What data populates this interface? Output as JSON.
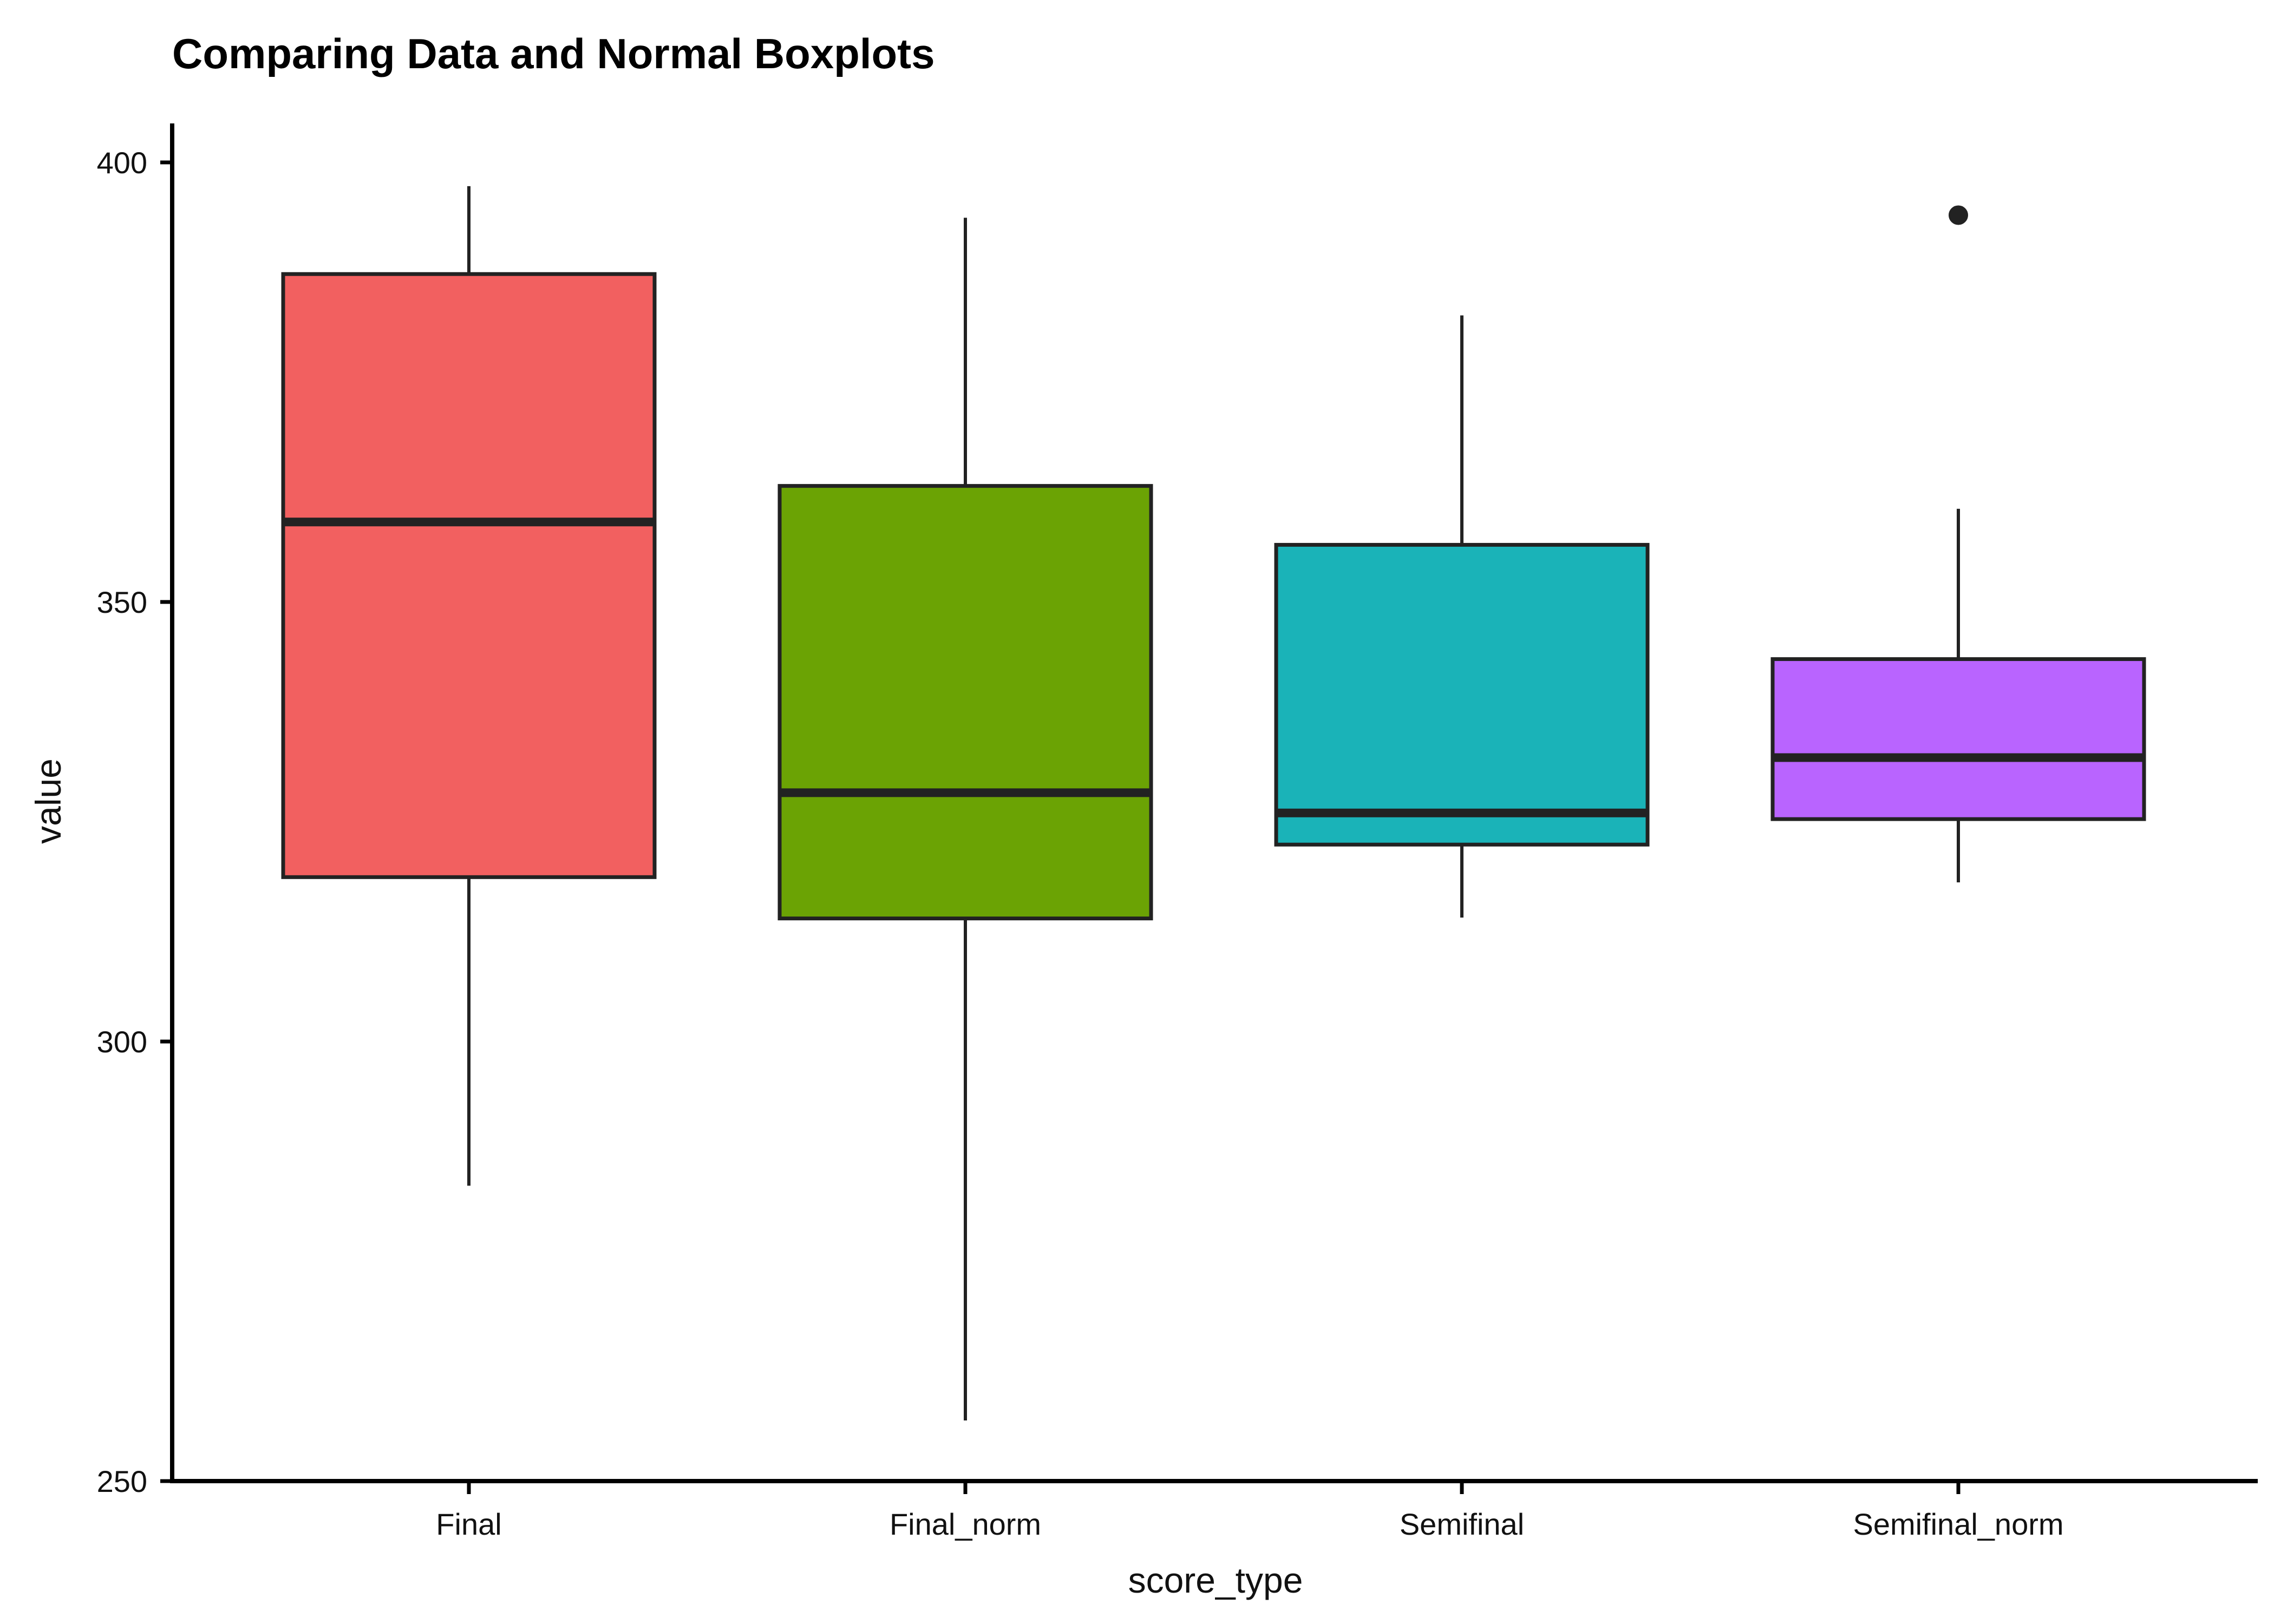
{
  "chart_data": {
    "type": "boxplot",
    "title": "Comparing Data and Normal Boxplots",
    "xlabel": "score_type",
    "ylabel": "value",
    "ylim": [
      250,
      404
    ],
    "yticks": [
      250,
      300,
      350,
      400
    ],
    "grid": false,
    "legend": "none",
    "categories": [
      "Final",
      "Final_norm",
      "Semifinal",
      "Semifinal_norm"
    ],
    "boxes": [
      {
        "category": "Final",
        "whisker_low": 283.6,
        "q1": 318.7,
        "median": 359.1,
        "q3": 387.3,
        "whisker_high": 397.3,
        "outliers": [],
        "color": "#F26060"
      },
      {
        "category": "Final_norm",
        "whisker_low": 256.9,
        "q1": 314.0,
        "median": 328.3,
        "q3": 363.2,
        "whisker_high": 393.7,
        "outliers": [],
        "color": "#6BA304"
      },
      {
        "category": "Semifinal",
        "whisker_low": 314.1,
        "q1": 322.4,
        "median": 326.0,
        "q3": 356.5,
        "whisker_high": 382.6,
        "outliers": [],
        "color": "#1AB3B8"
      },
      {
        "category": "Semifinal_norm",
        "whisker_low": 318.1,
        "q1": 325.3,
        "median": 332.3,
        "q3": 343.5,
        "whisker_high": 360.6,
        "outliers": [
          394.0
        ],
        "color": "#B964FF"
      }
    ]
  }
}
